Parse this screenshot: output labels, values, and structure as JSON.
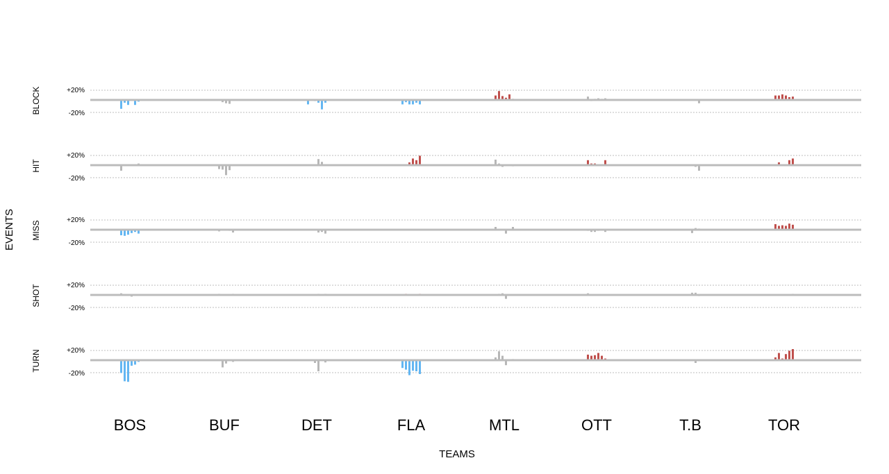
{
  "chart_data": {
    "type": "bar",
    "title": "",
    "xlabel": "TEAMS",
    "ylabel": "EVENTS",
    "categories": [
      "BOS",
      "BUF",
      "DET",
      "FLA",
      "MTL",
      "OTT",
      "T.B",
      "TOR"
    ],
    "rows": [
      "BLOCK",
      "HIT",
      "MISS",
      "SHOT",
      "TURN"
    ],
    "tick_labels": [
      "+20%",
      "-20%"
    ],
    "ylim": [
      -40,
      40
    ],
    "grid": true,
    "colors": {
      "positive": "#c0504d",
      "negative": "#63b6f2",
      "neutral": "#b7b7b7"
    },
    "cells": [
      {
        "row": "BLOCK",
        "team": "BOS",
        "color": "negative",
        "values": [
          -16,
          -5,
          -9,
          0,
          -9,
          -3
        ]
      },
      {
        "row": "BLOCK",
        "team": "BUF",
        "color": "neutral",
        "values": [
          0,
          0,
          -4,
          -6,
          -7,
          0
        ]
      },
      {
        "row": "BLOCK",
        "team": "DET",
        "color": "negative",
        "values": [
          -8,
          0,
          -2,
          -5,
          -17,
          -5
        ]
      },
      {
        "row": "BLOCK",
        "team": "FLA",
        "color": "negative",
        "values": [
          -8,
          -4,
          -8,
          -8,
          -5,
          -8
        ]
      },
      {
        "row": "BLOCK",
        "team": "MTL",
        "color": "positive",
        "values": [
          8,
          16,
          7,
          4,
          10,
          2
        ]
      },
      {
        "row": "BLOCK",
        "team": "OTT",
        "color": "neutral",
        "values": [
          6,
          -2,
          2,
          3,
          2,
          3
        ]
      },
      {
        "row": "BLOCK",
        "team": "T.B",
        "color": "neutral",
        "values": [
          0,
          0,
          0,
          0,
          1,
          -6
        ]
      },
      {
        "row": "BLOCK",
        "team": "TOR",
        "color": "positive",
        "values": [
          8,
          8,
          10,
          8,
          5,
          6
        ]
      },
      {
        "row": "HIT",
        "team": "BOS",
        "color": "neutral",
        "values": [
          -10,
          0,
          0,
          0,
          0,
          3
        ]
      },
      {
        "row": "HIT",
        "team": "BUF",
        "color": "neutral",
        "values": [
          0,
          -7,
          -8,
          -18,
          -9,
          0
        ]
      },
      {
        "row": "HIT",
        "team": "DET",
        "color": "neutral",
        "values": [
          0,
          0,
          0,
          11,
          6,
          0
        ]
      },
      {
        "row": "HIT",
        "team": "FLA",
        "color": "positive",
        "values": [
          1,
          1,
          5,
          12,
          9,
          17
        ]
      },
      {
        "row": "HIT",
        "team": "MTL",
        "color": "neutral",
        "values": [
          10,
          3,
          -3,
          0,
          0,
          -2
        ]
      },
      {
        "row": "HIT",
        "team": "OTT",
        "color": "positive",
        "values": [
          9,
          3,
          3,
          0,
          1,
          9
        ]
      },
      {
        "row": "HIT",
        "team": "T.B",
        "color": "neutral",
        "values": [
          0,
          0,
          0,
          0,
          -3,
          -10
        ]
      },
      {
        "row": "HIT",
        "team": "TOR",
        "color": "positive",
        "values": [
          1,
          5,
          1,
          1,
          9,
          12
        ]
      },
      {
        "row": "MISS",
        "team": "BOS",
        "color": "negative",
        "values": [
          -10,
          -11,
          -9,
          -6,
          -4,
          -7
        ]
      },
      {
        "row": "MISS",
        "team": "BUF",
        "color": "neutral",
        "values": [
          0,
          -3,
          0,
          0,
          -2,
          -5
        ]
      },
      {
        "row": "MISS",
        "team": "DET",
        "color": "neutral",
        "values": [
          0,
          0,
          0,
          -5,
          -4,
          -7
        ]
      },
      {
        "row": "MISS",
        "team": "FLA",
        "color": "neutral",
        "values": [
          0,
          0,
          0,
          0,
          -1,
          0
        ]
      },
      {
        "row": "MISS",
        "team": "MTL",
        "color": "neutral",
        "values": [
          5,
          1,
          0,
          -7,
          0,
          5
        ]
      },
      {
        "row": "MISS",
        "team": "OTT",
        "color": "neutral",
        "values": [
          -2,
          -4,
          -4,
          -2,
          0,
          -4
        ]
      },
      {
        "row": "MISS",
        "team": "T.B",
        "color": "neutral",
        "values": [
          0,
          0,
          0,
          -6,
          3,
          2
        ]
      },
      {
        "row": "MISS",
        "team": "TOR",
        "color": "positive",
        "values": [
          10,
          7,
          8,
          7,
          11,
          9
        ]
      },
      {
        "row": "SHOT",
        "team": "BOS",
        "color": "neutral",
        "values": [
          3,
          0,
          0,
          -3,
          0,
          0
        ]
      },
      {
        "row": "SHOT",
        "team": "BUF",
        "color": "neutral",
        "values": [
          0,
          2,
          1,
          0,
          1,
          2
        ]
      },
      {
        "row": "SHOT",
        "team": "DET",
        "color": "neutral",
        "values": [
          0,
          0,
          0,
          2,
          0,
          2
        ]
      },
      {
        "row": "SHOT",
        "team": "FLA",
        "color": "positive",
        "values": [
          1,
          2,
          1,
          0,
          1,
          2
        ]
      },
      {
        "row": "SHOT",
        "team": "MTL",
        "color": "neutral",
        "values": [
          0,
          2,
          3,
          -7,
          0,
          0
        ]
      },
      {
        "row": "SHOT",
        "team": "OTT",
        "color": "neutral",
        "values": [
          3,
          0,
          0,
          0,
          0,
          0
        ]
      },
      {
        "row": "SHOT",
        "team": "T.B",
        "color": "neutral",
        "values": [
          0,
          0,
          0,
          4,
          4,
          -2
        ]
      },
      {
        "row": "SHOT",
        "team": "TOR",
        "color": "neutral",
        "values": [
          0,
          1,
          1,
          1,
          0,
          2
        ]
      },
      {
        "row": "TURN",
        "team": "BOS",
        "color": "negative",
        "values": [
          -23,
          -38,
          -39,
          -10,
          -8,
          -3
        ]
      },
      {
        "row": "TURN",
        "team": "BUF",
        "color": "neutral",
        "values": [
          0,
          0,
          -13,
          -6,
          0,
          -3
        ]
      },
      {
        "row": "TURN",
        "team": "DET",
        "color": "neutral",
        "values": [
          0,
          0,
          -5,
          -20,
          0,
          -4
        ]
      },
      {
        "row": "TURN",
        "team": "FLA",
        "color": "negative",
        "values": [
          -14,
          -17,
          -27,
          -19,
          -20,
          -25
        ]
      },
      {
        "row": "TURN",
        "team": "MTL",
        "color": "neutral",
        "values": [
          5,
          16,
          8,
          -9,
          0,
          2
        ]
      },
      {
        "row": "TURN",
        "team": "OTT",
        "color": "positive",
        "values": [
          10,
          8,
          9,
          13,
          8,
          3
        ]
      },
      {
        "row": "TURN",
        "team": "T.B",
        "color": "neutral",
        "values": [
          0,
          0,
          0,
          0,
          -5,
          0
        ]
      },
      {
        "row": "TURN",
        "team": "TOR",
        "color": "positive",
        "values": [
          5,
          13,
          3,
          11,
          17,
          20
        ]
      }
    ]
  }
}
